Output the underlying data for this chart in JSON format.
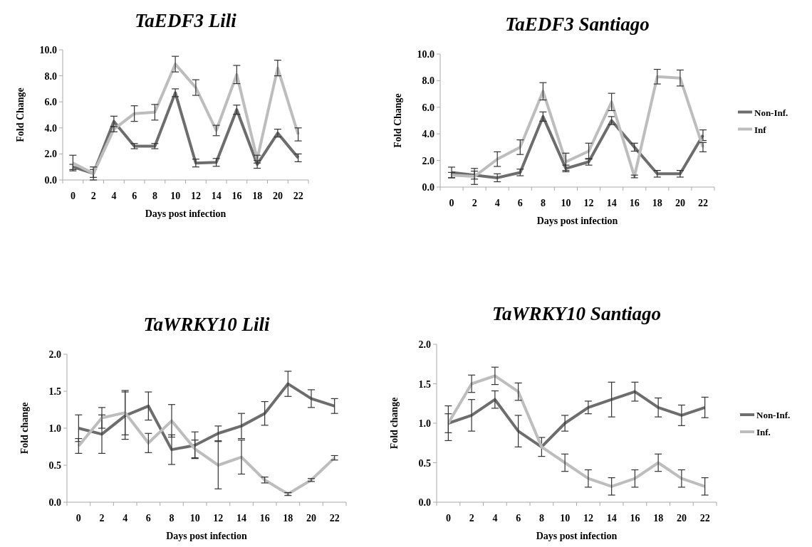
{
  "chart_data": [
    {
      "type": "line",
      "title": "TaEDF3 Lili",
      "xlabel": "Days post infection",
      "ylabel": "Fold Change",
      "categories": [
        "0",
        "2",
        "4",
        "6",
        "8",
        "10",
        "12",
        "14",
        "16",
        "18",
        "20",
        "22"
      ],
      "ylim": [
        0,
        10
      ],
      "yticks": [
        {
          "value": 0,
          "label": "0.0"
        },
        {
          "value": 2,
          "label": "2.0"
        },
        {
          "value": 4,
          "label": "4.0"
        },
        {
          "value": 6,
          "label": "6.0"
        },
        {
          "value": 8,
          "label": "8.0"
        },
        {
          "value": 10,
          "label": "10.0"
        }
      ],
      "grid": false,
      "legend": false,
      "marker": "none",
      "line_style": "solid",
      "series": [
        {
          "color": "#6d6d6d",
          "values": [
            1.0,
            0.5,
            4.5,
            2.6,
            2.6,
            6.7,
            1.3,
            1.35,
            5.4,
            1.2,
            3.6,
            1.7
          ],
          "errors": [
            0.2,
            0.3,
            0.4,
            0.2,
            0.2,
            0.3,
            0.3,
            0.3,
            0.35,
            0.3,
            0.3,
            0.3
          ]
        },
        {
          "color": "#bdbdbd",
          "values": [
            1.3,
            0.5,
            3.9,
            5.1,
            5.2,
            8.9,
            7.1,
            3.8,
            8.1,
            1.6,
            8.6,
            3.5
          ],
          "errors": [
            0.6,
            0.5,
            0.2,
            0.6,
            0.6,
            0.6,
            0.6,
            0.4,
            0.7,
            0.3,
            0.6,
            0.5
          ]
        }
      ]
    },
    {
      "type": "line",
      "title": "TaEDF3 Santiago",
      "xlabel": "Days post infection",
      "ylabel": "Fold Change",
      "categories": [
        "0",
        "2",
        "4",
        "6",
        "8",
        "10",
        "12",
        "14",
        "16",
        "18",
        "20",
        "22"
      ],
      "ylim": [
        0,
        10
      ],
      "yticks": [
        {
          "value": 0,
          "label": "0.0"
        },
        {
          "value": 2,
          "label": "2.0"
        },
        {
          "value": 4,
          "label": "4.0"
        },
        {
          "value": 6,
          "label": "6.0"
        },
        {
          "value": 8,
          "label": "8.0"
        },
        {
          "value": 10,
          "label": "10.0"
        }
      ],
      "grid": false,
      "legend": "right",
      "marker": "none",
      "line_style": "solid",
      "series": [
        {
          "name": "Non-Inf.",
          "color": "#6d6d6d",
          "values": [
            1.1,
            0.9,
            0.7,
            1.1,
            5.3,
            1.4,
            1.9,
            5.0,
            3.0,
            1.0,
            1.0,
            3.9
          ],
          "errors": [
            0.4,
            0.3,
            0.3,
            0.25,
            0.35,
            0.25,
            0.25,
            0.3,
            0.3,
            0.25,
            0.25,
            0.4
          ]
        },
        {
          "name": "Inf",
          "color": "#bdbdbd",
          "values": [
            0.9,
            0.8,
            2.1,
            3.0,
            7.2,
            1.9,
            2.7,
            6.4,
            0.8,
            8.3,
            8.2,
            3.0
          ],
          "errors": [
            0.2,
            0.6,
            0.55,
            0.55,
            0.65,
            0.65,
            0.6,
            0.65,
            0.1,
            0.55,
            0.6,
            0.35
          ]
        }
      ]
    },
    {
      "type": "line",
      "title": "TaWRKY10 Lili",
      "xlabel": "Days post infection",
      "ylabel": "Fold change",
      "categories": [
        "0",
        "2",
        "4",
        "6",
        "8",
        "10",
        "12",
        "14",
        "16",
        "18",
        "20",
        "22"
      ],
      "ylim": [
        0,
        2
      ],
      "yticks": [
        {
          "value": 0,
          "label": "0.0"
        },
        {
          "value": 0.5,
          "label": "0.5"
        },
        {
          "value": 1,
          "label": "1.0"
        },
        {
          "value": 1.5,
          "label": "1.5"
        },
        {
          "value": 2,
          "label": "2.0"
        }
      ],
      "grid": false,
      "legend": false,
      "marker": "none",
      "line_style": "solid",
      "series": [
        {
          "color": "#6d6d6d",
          "values": [
            1.0,
            0.92,
            1.17,
            1.3,
            0.71,
            0.77,
            0.93,
            1.03,
            1.2,
            1.6,
            1.4,
            1.3
          ],
          "errors": [
            0.18,
            0.26,
            0.32,
            0.19,
            0.2,
            0.18,
            0.1,
            0.17,
            0.16,
            0.17,
            0.12,
            0.1
          ]
        },
        {
          "color": "#bdbdbd",
          "values": [
            0.76,
            1.14,
            1.21,
            0.8,
            1.1,
            0.72,
            0.5,
            0.61,
            0.3,
            0.11,
            0.3,
            0.6
          ],
          "errors": [
            0.1,
            0.14,
            0.3,
            0.13,
            0.22,
            0.12,
            0.32,
            0.23,
            0.04,
            0.02,
            0.02,
            0.03
          ]
        }
      ]
    },
    {
      "type": "line",
      "title": "TaWRKY10 Santiago",
      "xlabel": "Days post infection",
      "ylabel": "Fold change",
      "categories": [
        "0",
        "2",
        "4",
        "6",
        "8",
        "10",
        "12",
        "14",
        "16",
        "18",
        "20",
        "22"
      ],
      "ylim": [
        0,
        2
      ],
      "yticks": [
        {
          "value": 0,
          "label": "0.0"
        },
        {
          "value": 0.5,
          "label": "0.5"
        },
        {
          "value": 1,
          "label": "1.0"
        },
        {
          "value": 1.5,
          "label": "1.5"
        },
        {
          "value": 2,
          "label": "2.0"
        }
      ],
      "grid": false,
      "legend": "right",
      "marker": "none",
      "line_style": "solid",
      "series": [
        {
          "name": "Non-Inf.",
          "color": "#6d6d6d",
          "values": [
            1.0,
            1.1,
            1.3,
            0.9,
            0.7,
            1.0,
            1.2,
            1.3,
            1.4,
            1.2,
            1.1,
            1.2
          ],
          "errors": [
            0.12,
            0.2,
            0.11,
            0.2,
            0.12,
            0.1,
            0.08,
            0.22,
            0.12,
            0.12,
            0.13,
            0.13
          ]
        },
        {
          "name": "Inf.",
          "color": "#bdbdbd",
          "values": [
            1.0,
            1.5,
            1.6,
            1.4,
            0.7,
            0.5,
            0.3,
            0.2,
            0.3,
            0.5,
            0.3,
            0.2
          ],
          "errors": [
            0.22,
            0.11,
            0.11,
            0.11,
            null,
            0.11,
            0.11,
            0.11,
            0.11,
            0.11,
            0.11,
            0.11
          ]
        }
      ]
    }
  ]
}
